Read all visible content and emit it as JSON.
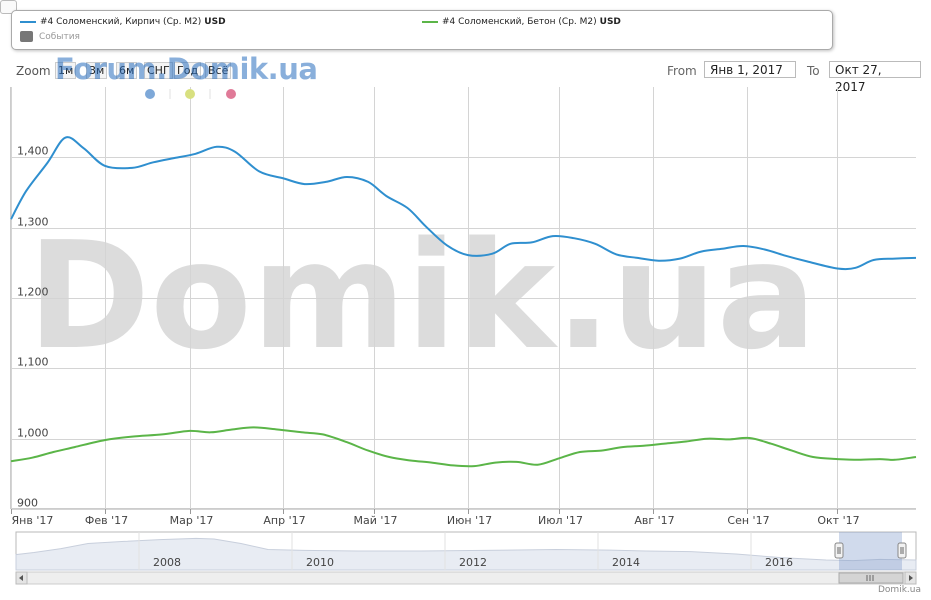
{
  "legend": {
    "series1_name": "#4 Соломенский, Кирпич (Ср. М2)",
    "series1_unit": "USD",
    "series2_name": "#4 Соломенский, Бетон (Ср. М2)",
    "series2_unit": "USD",
    "events_label": "События"
  },
  "range_selector": {
    "zoom_label": "Zoom",
    "buttons": [
      "1м",
      "3м",
      "6м",
      "СНГ",
      "Год",
      "Всё"
    ],
    "from_label": "From",
    "from_value": "Янв 1, 2017",
    "to_label": "To",
    "to_value": "Окт 27, 2017"
  },
  "watermark": {
    "header_text": "Forum.Domik.ua",
    "large_text": "Domik.ua"
  },
  "credit": "Domik.ua",
  "colors": {
    "series1": "#2f8fcf",
    "series2": "#5bb548",
    "grid": "#cccccc",
    "watermark": "#dcdcdc",
    "navigator_area": "#c8d4e8",
    "flag_dots": [
      "#7ea8d8",
      "#d8e080",
      "#e07a98"
    ]
  },
  "chart_data": {
    "type": "line",
    "title": "",
    "x_start": "2017-01-01",
    "x_end": "2017-10-27",
    "x_tick_labels": [
      "Янв '17",
      "Фев '17",
      "Мар '17",
      "Апр '17",
      "Май '17",
      "Июн '17",
      "Июл '17",
      "Авг '17",
      "Сен '17",
      "Окт '17"
    ],
    "x_tick_dates": [
      "2017-01-01",
      "2017-02-01",
      "2017-03-01",
      "2017-04-01",
      "2017-05-01",
      "2017-06-01",
      "2017-07-01",
      "2017-08-01",
      "2017-09-01",
      "2017-10-01"
    ],
    "y_ticks": [
      900,
      1000,
      1100,
      1200,
      1300,
      1400
    ],
    "y_tick_labels": [
      "900",
      "1,000",
      "1,100",
      "1,200",
      "1,300",
      "1,400"
    ],
    "ylim": [
      900,
      1500
    ],
    "grid": true,
    "series": [
      {
        "name": "#4 Соломенский, Кирпич (Ср. М2)",
        "color": "#2f8fcf",
        "points": [
          [
            "2017-01-01",
            1312
          ],
          [
            "2017-01-06",
            1352
          ],
          [
            "2017-01-13",
            1392
          ],
          [
            "2017-01-19",
            1428
          ],
          [
            "2017-01-25",
            1413
          ],
          [
            "2017-02-01",
            1388
          ],
          [
            "2017-02-10",
            1385
          ],
          [
            "2017-02-17",
            1393
          ],
          [
            "2017-02-24",
            1399
          ],
          [
            "2017-03-03",
            1405
          ],
          [
            "2017-03-10",
            1415
          ],
          [
            "2017-03-16",
            1408
          ],
          [
            "2017-03-24",
            1380
          ],
          [
            "2017-04-01",
            1370
          ],
          [
            "2017-04-08",
            1362
          ],
          [
            "2017-04-15",
            1365
          ],
          [
            "2017-04-22",
            1372
          ],
          [
            "2017-04-29",
            1365
          ],
          [
            "2017-05-05",
            1345
          ],
          [
            "2017-05-12",
            1328
          ],
          [
            "2017-05-18",
            1302
          ],
          [
            "2017-05-25",
            1275
          ],
          [
            "2017-06-01",
            1261
          ],
          [
            "2017-06-09",
            1263
          ],
          [
            "2017-06-15",
            1277
          ],
          [
            "2017-06-22",
            1279
          ],
          [
            "2017-06-29",
            1288
          ],
          [
            "2017-07-06",
            1285
          ],
          [
            "2017-07-13",
            1277
          ],
          [
            "2017-07-20",
            1262
          ],
          [
            "2017-07-27",
            1257
          ],
          [
            "2017-08-03",
            1253
          ],
          [
            "2017-08-10",
            1256
          ],
          [
            "2017-08-17",
            1266
          ],
          [
            "2017-08-24",
            1270
          ],
          [
            "2017-08-31",
            1274
          ],
          [
            "2017-09-07",
            1269
          ],
          [
            "2017-09-14",
            1260
          ],
          [
            "2017-09-21",
            1252
          ],
          [
            "2017-10-01",
            1242
          ],
          [
            "2017-10-07",
            1243
          ],
          [
            "2017-10-13",
            1254
          ],
          [
            "2017-10-20",
            1256
          ],
          [
            "2017-10-27",
            1257
          ]
        ]
      },
      {
        "name": "#4 Соломенский, Бетон (Ср. М2)",
        "color": "#5bb548",
        "points": [
          [
            "2017-01-01",
            968
          ],
          [
            "2017-01-08",
            973
          ],
          [
            "2017-01-15",
            981
          ],
          [
            "2017-01-22",
            988
          ],
          [
            "2017-02-01",
            998
          ],
          [
            "2017-02-10",
            1003
          ],
          [
            "2017-02-20",
            1006
          ],
          [
            "2017-03-01",
            1011
          ],
          [
            "2017-03-08",
            1009
          ],
          [
            "2017-03-15",
            1013
          ],
          [
            "2017-03-22",
            1016
          ],
          [
            "2017-03-30",
            1013
          ],
          [
            "2017-04-07",
            1009
          ],
          [
            "2017-04-14",
            1006
          ],
          [
            "2017-04-22",
            995
          ],
          [
            "2017-04-29",
            983
          ],
          [
            "2017-05-06",
            974
          ],
          [
            "2017-05-13",
            969
          ],
          [
            "2017-05-20",
            966
          ],
          [
            "2017-05-27",
            962
          ],
          [
            "2017-06-03",
            961
          ],
          [
            "2017-06-10",
            966
          ],
          [
            "2017-06-17",
            967
          ],
          [
            "2017-06-24",
            963
          ],
          [
            "2017-07-01",
            972
          ],
          [
            "2017-07-08",
            981
          ],
          [
            "2017-07-15",
            983
          ],
          [
            "2017-07-22",
            988
          ],
          [
            "2017-07-29",
            990
          ],
          [
            "2017-08-05",
            993
          ],
          [
            "2017-08-12",
            996
          ],
          [
            "2017-08-19",
            1000
          ],
          [
            "2017-08-26",
            999
          ],
          [
            "2017-09-02",
            1001
          ],
          [
            "2017-09-09",
            993
          ],
          [
            "2017-09-16",
            983
          ],
          [
            "2017-09-23",
            974
          ],
          [
            "2017-10-01",
            971
          ],
          [
            "2017-10-08",
            970
          ],
          [
            "2017-10-15",
            971
          ],
          [
            "2017-10-20",
            970
          ],
          [
            "2017-10-27",
            974
          ]
        ]
      }
    ],
    "navigator": {
      "x_tick_labels": [
        "2008",
        "2010",
        "2012",
        "2014",
        "2016"
      ]
    }
  }
}
